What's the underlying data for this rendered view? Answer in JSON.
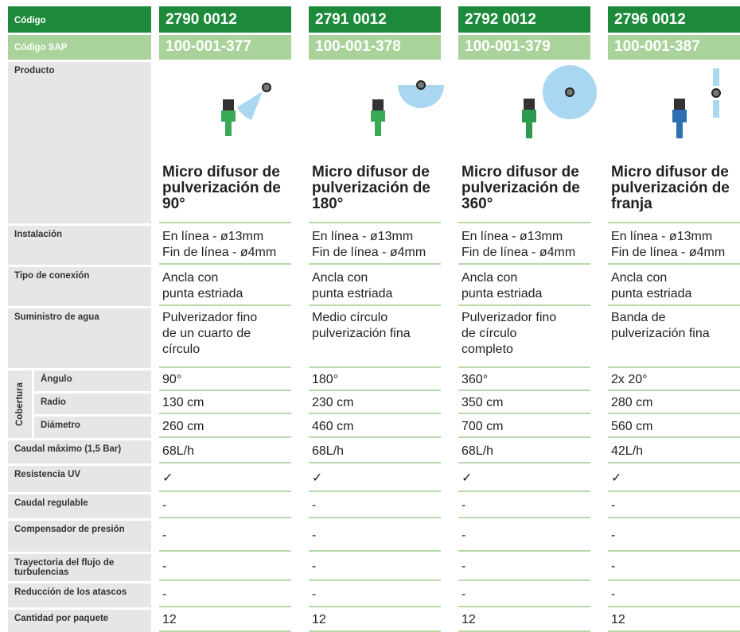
{
  "header": {
    "codigo_label": "Código",
    "sap_label": "Código SAP",
    "producto_label": "Producto"
  },
  "products": [
    {
      "codigo": "2790 0012",
      "sap": "100-001-377",
      "name": "Micro difusor de pulverización de 90°"
    },
    {
      "codigo": "2791 0012",
      "sap": "100-001-378",
      "name": "Micro difusor de pulverización de 180°"
    },
    {
      "codigo": "2792 0012",
      "sap": "100-001-379",
      "name": "Micro difusor de pulverización de 360°"
    },
    {
      "codigo": "2796 0012",
      "sap": "100-001-387",
      "name": "Micro difusor de pulverización de franja"
    }
  ],
  "rows_top": [
    {
      "label": "Instalación",
      "values": [
        "En línea - ø13mm\nFin de línea - ø4mm",
        "En línea - ø13mm\nFin de línea - ø4mm",
        "En línea - ø13mm\nFin de línea - ø4mm",
        "En línea - ø13mm\nFin de línea - ø4mm"
      ]
    },
    {
      "label": "Tipo de conexión",
      "values": [
        "Ancla con\npunta estriada",
        "Ancla con\npunta estriada",
        "Ancla con\npunta estriada",
        "Ancla con\npunta estriada"
      ]
    },
    {
      "label": "Suministro de agua",
      "values": [
        "Pulverizador fino\nde un cuarto de\ncírculo",
        "Medio círculo\npulverización fina",
        "Pulverizador fino\nde círculo\ncompleto",
        "Banda de\npulverización fina"
      ]
    }
  ],
  "cobertura": {
    "label": "Cobertura",
    "rows": [
      {
        "label": "Ángulo",
        "values": [
          "90°",
          "180°",
          "360°",
          "2x 20°"
        ]
      },
      {
        "label": "Radio",
        "values": [
          "130 cm",
          "230 cm",
          "350 cm",
          "280 cm"
        ]
      },
      {
        "label": "Diámetro",
        "values": [
          "260 cm",
          "460 cm",
          "700 cm",
          "560 cm"
        ]
      }
    ]
  },
  "rows_bottom": [
    {
      "label": "Caudal máximo (1,5 Bar)",
      "values": [
        "68L/h",
        "68L/h",
        "68L/h",
        "42L/h"
      ]
    },
    {
      "label": "Resistencia UV",
      "values": [
        "✓",
        "✓",
        "✓",
        "✓"
      ]
    },
    {
      "label": "Caudal regulable",
      "values": [
        "-",
        "-",
        "-",
        "-"
      ]
    },
    {
      "label": "Compensador de presión",
      "values": [
        "-",
        "-",
        "-",
        "-"
      ]
    },
    {
      "label": "Trayectoria del flujo de turbulencias",
      "values": [
        "-",
        "-",
        "-",
        "-"
      ]
    },
    {
      "label": "Reducción de los atascos",
      "values": [
        "-",
        "-",
        "-",
        "-"
      ]
    },
    {
      "label": "Cantidad por paquete",
      "values": [
        "12",
        "12",
        "12",
        "12"
      ]
    }
  ]
}
